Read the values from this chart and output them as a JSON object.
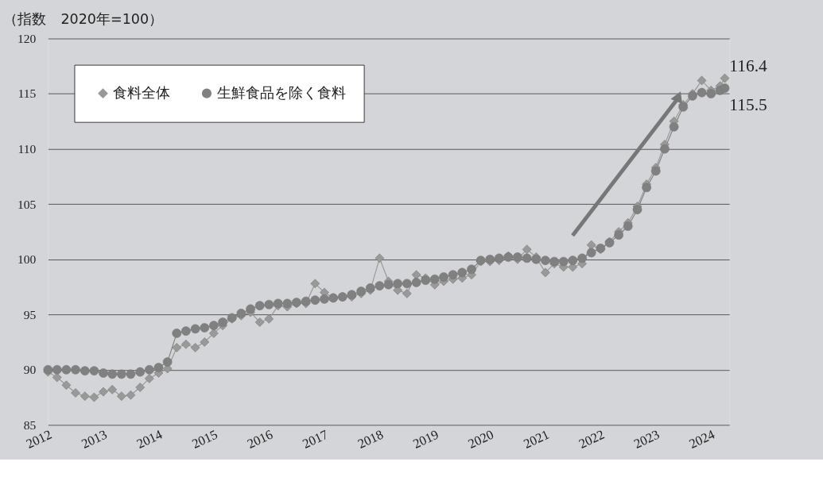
{
  "chart_data": {
    "type": "line",
    "ylabel": "（指数　2020年=100）",
    "x": [
      "2012-01",
      "2012-03",
      "2012-05",
      "2012-07",
      "2012-09",
      "2012-11",
      "2013-01",
      "2013-03",
      "2013-05",
      "2013-07",
      "2013-09",
      "2013-11",
      "2014-01",
      "2014-03",
      "2014-05",
      "2014-07",
      "2014-09",
      "2014-11",
      "2015-01",
      "2015-03",
      "2015-05",
      "2015-07",
      "2015-09",
      "2015-11",
      "2016-01",
      "2016-03",
      "2016-05",
      "2016-07",
      "2016-09",
      "2016-11",
      "2017-01",
      "2017-03",
      "2017-05",
      "2017-07",
      "2017-09",
      "2017-11",
      "2018-01",
      "2018-03",
      "2018-05",
      "2018-07",
      "2018-09",
      "2018-11",
      "2019-01",
      "2019-03",
      "2019-05",
      "2019-07",
      "2019-09",
      "2019-11",
      "2020-01",
      "2020-03",
      "2020-05",
      "2020-07",
      "2020-09",
      "2020-11",
      "2021-01",
      "2021-03",
      "2021-05",
      "2021-07",
      "2021-09",
      "2021-11",
      "2022-01",
      "2022-03",
      "2022-05",
      "2022-07",
      "2022-09",
      "2022-11",
      "2023-01",
      "2023-03",
      "2023-05",
      "2023-07",
      "2023-09",
      "2023-11",
      "2024-01",
      "2024-03",
      "2024-04"
    ],
    "series": [
      {
        "name": "食料全体",
        "color": "#999999",
        "marker": "diamond",
        "values": [
          89.8,
          89.3,
          88.6,
          87.9,
          87.6,
          87.5,
          88.0,
          88.2,
          87.6,
          87.7,
          88.4,
          89.2,
          89.7,
          90.1,
          92.0,
          92.3,
          92.0,
          92.5,
          93.3,
          94.0,
          94.6,
          94.9,
          95.2,
          94.3,
          94.6,
          95.8,
          95.7,
          96.0,
          96.0,
          97.8,
          97.0,
          96.5,
          96.6,
          96.6,
          96.9,
          97.2,
          100.1,
          98.0,
          97.2,
          96.9,
          98.6,
          98.3,
          97.7,
          98.0,
          98.2,
          98.3,
          98.6,
          99.8,
          99.8,
          99.9,
          100.3,
          100.0,
          100.9,
          100.2,
          98.8,
          99.6,
          99.3,
          99.3,
          99.6,
          101.3,
          100.9,
          101.6,
          102.5,
          103.3,
          104.8,
          106.8,
          108.3,
          110.4,
          112.5,
          114.0,
          115.0,
          116.2,
          115.3,
          115.7,
          116.4
        ]
      },
      {
        "name": "生鮮食品を除く食料",
        "color": "#808080",
        "marker": "circle",
        "values": [
          90.0,
          90.0,
          90.0,
          90.0,
          89.9,
          89.9,
          89.7,
          89.6,
          89.6,
          89.6,
          89.8,
          90.0,
          90.2,
          90.7,
          93.3,
          93.5,
          93.7,
          93.8,
          94.0,
          94.3,
          94.7,
          95.1,
          95.5,
          95.8,
          95.9,
          96.0,
          96.0,
          96.1,
          96.2,
          96.3,
          96.4,
          96.5,
          96.6,
          96.8,
          97.1,
          97.4,
          97.6,
          97.7,
          97.8,
          97.8,
          97.9,
          98.1,
          98.2,
          98.4,
          98.6,
          98.8,
          99.1,
          99.9,
          100.0,
          100.1,
          100.2,
          100.2,
          100.1,
          100.0,
          99.9,
          99.8,
          99.8,
          99.9,
          100.1,
          100.6,
          101.0,
          101.5,
          102.2,
          103.0,
          104.5,
          106.5,
          108.0,
          110.0,
          112.0,
          113.8,
          114.8,
          115.1,
          115.0,
          115.3,
          115.5
        ]
      }
    ],
    "xlim": [
      "2012-01",
      "2024-05"
    ],
    "xticks": [
      "2012",
      "2013",
      "2014",
      "2015",
      "2016",
      "2017",
      "2018",
      "2019",
      "2020",
      "2021",
      "2022",
      "2023",
      "2024"
    ],
    "ylim": [
      85,
      120
    ],
    "yticks": [
      85,
      90,
      95,
      100,
      105,
      110,
      115,
      120
    ],
    "grid": "y",
    "legend": "top left",
    "line_style": "solid",
    "annotations": [
      {
        "text": "116.4",
        "x": "2024-04",
        "y": 116.4
      },
      {
        "text": "115.5",
        "x": "2024-04",
        "y": 115.5
      }
    ]
  }
}
